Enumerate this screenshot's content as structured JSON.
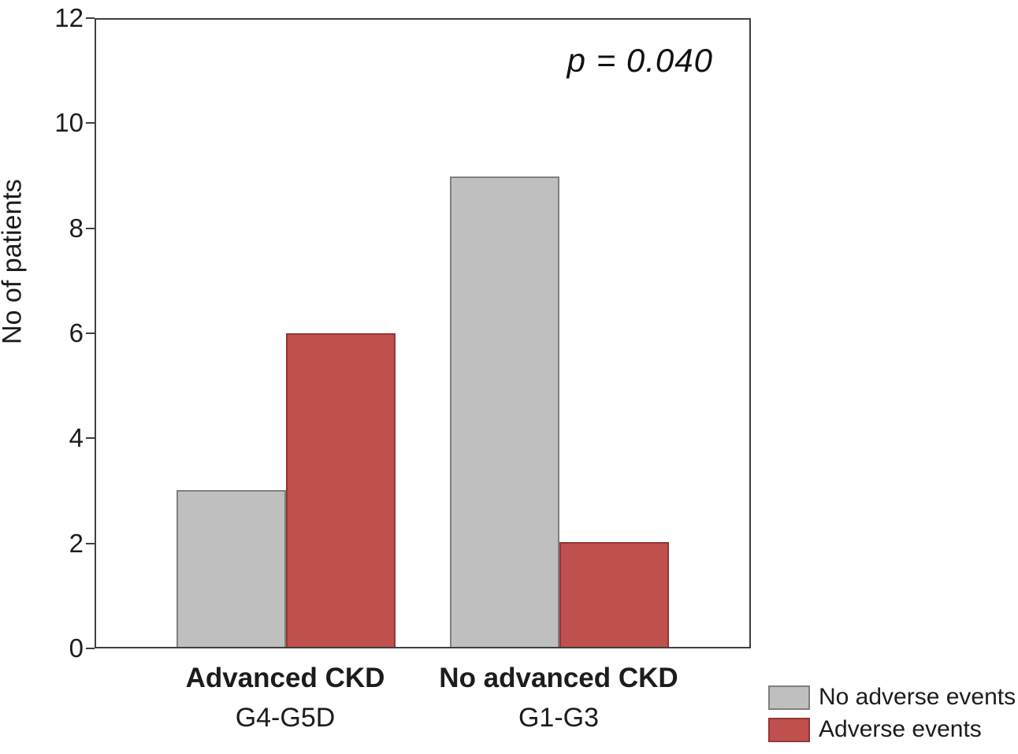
{
  "chart_data": {
    "type": "bar",
    "title": "",
    "xlabel": "",
    "ylabel": "No of patients",
    "ylim": [
      0,
      12
    ],
    "yticks": [
      0,
      2,
      4,
      6,
      8,
      10,
      12
    ],
    "grid": false,
    "annotation": "p = 0.040",
    "legend_position": "bottom-right-outside",
    "categories": [
      {
        "label": "Advanced CKD",
        "sublabel": "G4-G5D"
      },
      {
        "label": "No advanced CKD",
        "sublabel": "G1-G3"
      }
    ],
    "series": [
      {
        "name": "No adverse events",
        "values": [
          3,
          9
        ],
        "fill": "#bfbfbf",
        "border": "#7f7f7f"
      },
      {
        "name": "Adverse events",
        "values": [
          6,
          2
        ],
        "fill": "#c0504d",
        "border": "#943634"
      }
    ]
  }
}
